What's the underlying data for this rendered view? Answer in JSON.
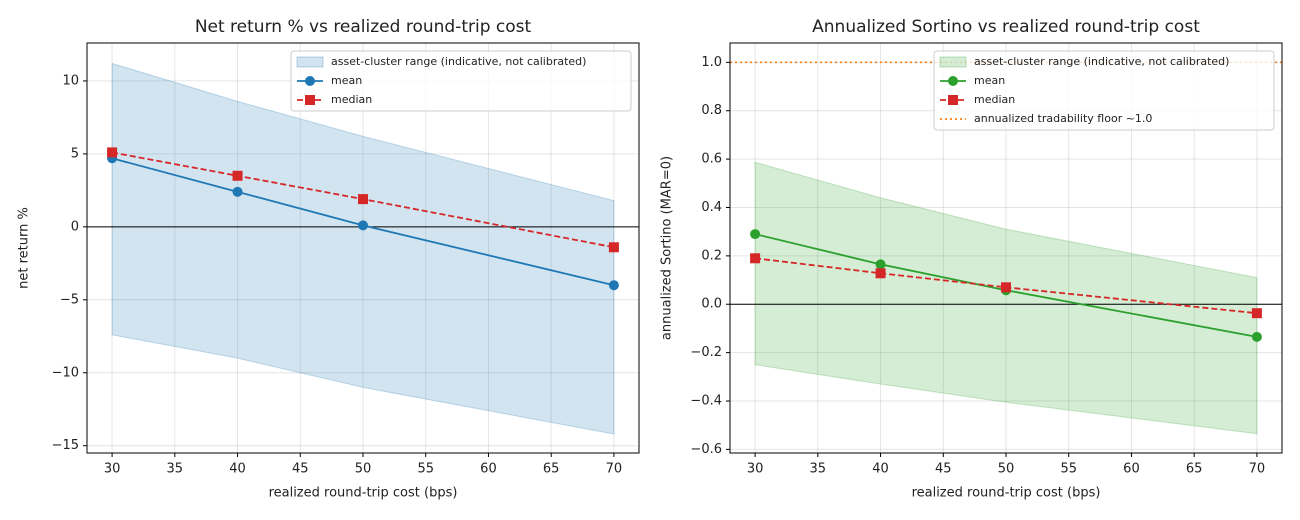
{
  "chart_data": [
    {
      "type": "line",
      "title": "Net return % vs realized round-trip cost",
      "xlabel": "realized round-trip cost (bps)",
      "ylabel": "net return %",
      "x": [
        30,
        40,
        50,
        70
      ],
      "band": {
        "name": "asset-cluster range (indicative, not calibrated)",
        "color": "#1f77b4",
        "upper": [
          11.2,
          8.6,
          6.2,
          1.8
        ],
        "lower": [
          -7.4,
          -9.0,
          -11.0,
          -14.2
        ]
      },
      "series": [
        {
          "name": "mean",
          "color": "#1f77b4",
          "marker": "circle",
          "dash": "solid",
          "values": [
            4.7,
            2.4,
            0.1,
            -4.0
          ]
        },
        {
          "name": "median",
          "color": "#d62728",
          "marker": "square",
          "dash": "dashed",
          "values": [
            5.1,
            3.5,
            1.9,
            -1.4
          ]
        }
      ],
      "hlines": [
        {
          "value": 0,
          "color": "#000000",
          "style": "solid"
        }
      ],
      "xlim": [
        28,
        72
      ],
      "xticks": [
        30,
        35,
        40,
        45,
        50,
        55,
        60,
        65,
        70
      ],
      "ylim": [
        -15.5,
        12.6
      ],
      "yticks": [
        {
          "value": -15,
          "label": "−15"
        },
        {
          "value": -10,
          "label": "−10"
        },
        {
          "value": -5,
          "label": "−5"
        },
        0,
        5,
        10
      ],
      "grid": true,
      "legend": "upper right"
    },
    {
      "type": "line",
      "title": "Annualized Sortino vs realized round-trip cost",
      "xlabel": "realized round-trip cost (bps)",
      "ylabel": "annualized Sortino (MAR=0)",
      "x": [
        30,
        40,
        50,
        70
      ],
      "band": {
        "name": "asset-cluster range (indicative, not calibrated)",
        "color": "#2ca02c",
        "upper": [
          0.587,
          0.44,
          0.31,
          0.11
        ],
        "lower": [
          -0.25,
          -0.33,
          -0.405,
          -0.535
        ]
      },
      "series": [
        {
          "name": "mean",
          "color": "#2ca02c",
          "marker": "circle",
          "dash": "solid",
          "values": [
            0.29,
            0.165,
            0.058,
            -0.135
          ]
        },
        {
          "name": "median",
          "color": "#d62728",
          "marker": "square",
          "dash": "dashed",
          "values": [
            0.19,
            0.128,
            0.07,
            -0.037
          ]
        }
      ],
      "hlines": [
        {
          "value": 0,
          "color": "#000000",
          "style": "solid"
        },
        {
          "name": "annualized tradability floor ~1.0",
          "value": 1.0,
          "color": "#ff7f0e",
          "style": "dotted"
        }
      ],
      "xlim": [
        28,
        72
      ],
      "xticks": [
        30,
        35,
        40,
        45,
        50,
        55,
        60,
        65,
        70
      ],
      "ylim": [
        -0.615,
        1.08
      ],
      "yticks": [
        {
          "value": -0.6,
          "label": "−0.6"
        },
        {
          "value": -0.4,
          "label": "−0.4"
        },
        {
          "value": -0.2,
          "label": "−0.2"
        },
        {
          "value": 0,
          "label": "0.0"
        },
        0.2,
        0.4,
        0.6,
        0.8,
        {
          "value": 1,
          "label": "1.0"
        }
      ],
      "grid": true,
      "legend": "upper right"
    }
  ]
}
